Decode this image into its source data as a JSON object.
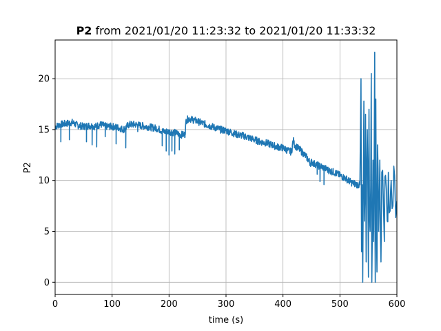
{
  "chart_data": {
    "type": "line",
    "title_bold": "P2",
    "title_rest": " from 2021/01/20 11:23:32 to 2021/01/20 11:33:32",
    "xlabel": "time (s)",
    "ylabel": "P2",
    "xlim": [
      0,
      600
    ],
    "ylim": [
      -1.2,
      23.8
    ],
    "xticks": [
      0,
      100,
      200,
      300,
      400,
      500,
      600
    ],
    "yticks": [
      0,
      5,
      10,
      15,
      20
    ],
    "grid": true,
    "legend": "none",
    "series": [
      {
        "color": "#1f77b4",
        "noise": 0.35,
        "x": [
          0,
          10,
          20,
          30,
          40,
          50,
          60,
          70,
          80,
          90,
          100,
          110,
          120,
          130,
          140,
          150,
          160,
          170,
          180,
          190,
          200,
          210,
          220,
          228,
          230,
          235,
          240,
          250,
          260,
          270,
          280,
          290,
          300,
          310,
          320,
          330,
          340,
          350,
          360,
          370,
          380,
          390,
          400,
          410,
          415,
          418,
          420,
          430,
          440,
          445,
          448,
          450,
          460,
          470,
          480,
          490,
          500,
          510,
          520,
          530,
          535
        ],
        "y": [
          15.3,
          15.5,
          15.6,
          15.7,
          15.4,
          15.3,
          15.4,
          15.3,
          15.5,
          15.3,
          15.3,
          15.2,
          15.0,
          15.5,
          15.5,
          15.4,
          15.3,
          15.2,
          15.1,
          14.8,
          14.8,
          14.7,
          14.5,
          14.5,
          15.9,
          16.1,
          16.0,
          15.8,
          15.6,
          15.4,
          15.2,
          15.0,
          14.9,
          14.7,
          14.5,
          14.4,
          14.2,
          14.0,
          13.8,
          13.7,
          13.5,
          13.3,
          13.2,
          12.9,
          12.8,
          14.0,
          13.5,
          13.0,
          12.4,
          12.0,
          11.7,
          11.8,
          11.5,
          11.3,
          11.0,
          10.8,
          10.5,
          10.2,
          9.8,
          9.6,
          9.5
        ],
        "dips": [
          [
            10,
            13.8
          ],
          [
            25,
            14.0
          ],
          [
            55,
            13.8
          ],
          [
            65,
            13.5
          ],
          [
            73,
            13.3
          ],
          [
            88,
            14.3
          ],
          [
            107,
            13.6
          ],
          [
            124,
            13.2
          ],
          [
            145,
            14.8
          ],
          [
            188,
            13.4
          ],
          [
            195,
            12.9
          ],
          [
            200,
            12.5
          ],
          [
            205,
            12.9
          ],
          [
            210,
            12.6
          ],
          [
            218,
            13.0
          ],
          [
            228,
            14.4
          ],
          [
            460,
            10.6
          ],
          [
            465,
            9.9
          ],
          [
            472,
            9.6
          ]
        ],
        "burst_x": [
          535,
          600
        ],
        "burst": [
          [
            537,
            20.0
          ],
          [
            538,
            3.0
          ],
          [
            540,
            0.0
          ],
          [
            542,
            17.8
          ],
          [
            543,
            6.0
          ],
          [
            545,
            16.5
          ],
          [
            546,
            2.0
          ],
          [
            548,
            15.0
          ],
          [
            550,
            0.5
          ],
          [
            551,
            17.0
          ],
          [
            553,
            5.0
          ],
          [
            555,
            20.5
          ],
          [
            556,
            0.0
          ],
          [
            558,
            12.0
          ],
          [
            559,
            4.0
          ],
          [
            561,
            22.6
          ],
          [
            562,
            0.0
          ],
          [
            563,
            18.0
          ],
          [
            565,
            1.0
          ],
          [
            566,
            13.5
          ],
          [
            568,
            5.0
          ],
          [
            570,
            12.0
          ],
          [
            572,
            2.0
          ],
          [
            575,
            11.0
          ],
          [
            578,
            4.0
          ],
          [
            580,
            10.5
          ],
          [
            583,
            6.0
          ],
          [
            585,
            10.8
          ],
          [
            588,
            7.0
          ],
          [
            590,
            10.0
          ],
          [
            593,
            7.5
          ],
          [
            596,
            10.5
          ],
          [
            600,
            8.0
          ]
        ]
      }
    ]
  }
}
